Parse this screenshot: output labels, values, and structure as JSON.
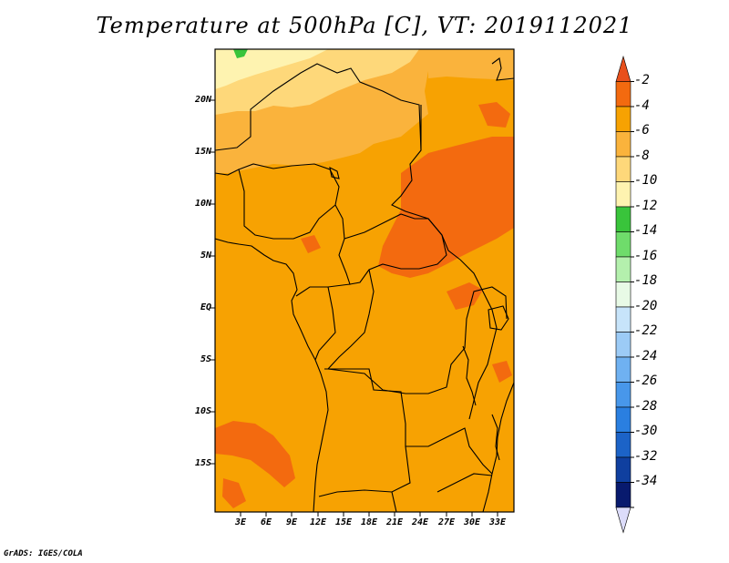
{
  "title": "Temperature at 500hPa [C], VT: 2019112021",
  "credit": "GrADS: IGES/COLA",
  "map": {
    "lat_labels": [
      "20N",
      "15N",
      "10N",
      "5N",
      "EQ",
      "5S",
      "10S",
      "15S"
    ],
    "lon_labels": [
      "3E",
      "6E",
      "9E",
      "12E",
      "15E",
      "18E",
      "21E",
      "24E",
      "27E",
      "30E",
      "33E"
    ]
  },
  "colorbar": {
    "labels": [
      "-2",
      "-4",
      "-6",
      "-8",
      "-10",
      "-12",
      "-14",
      "-16",
      "-18",
      "-20",
      "-22",
      "-24",
      "-26",
      "-28",
      "-30",
      "-32",
      "-34"
    ],
    "colors": [
      "#e8501c",
      "#f36a0f",
      "#f7a202",
      "#fab33c",
      "#fed87a",
      "#fef3b0",
      "#39c43b",
      "#6fdc6b",
      "#b4f0ad",
      "#e8fae6",
      "#c7e4fa",
      "#9ccbf6",
      "#6fb1f1",
      "#4897ea",
      "#2a7fe0",
      "#1c63c7",
      "#0f3f9f",
      "#081a6e",
      "#dcdcfa"
    ]
  }
}
